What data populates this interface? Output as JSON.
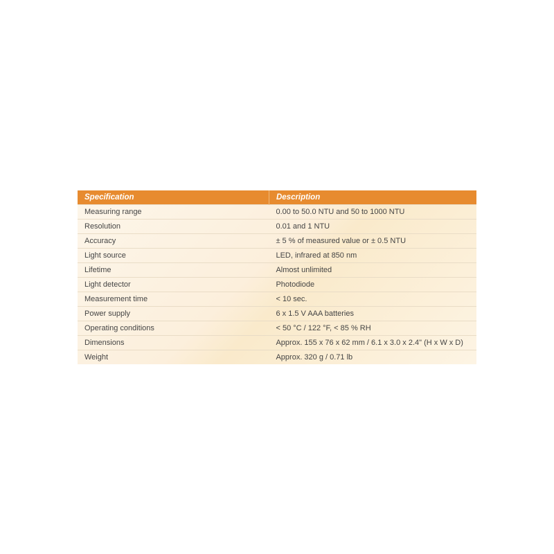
{
  "spec_table": {
    "type": "table",
    "header_bg": "#e78b2f",
    "header_text_color": "#ffffff",
    "row_border_color": "#e9dcc6",
    "body_bg_gradient": [
      "#fdf6ea",
      "#fcefdc",
      "#faeacb",
      "#fdf4e4"
    ],
    "text_color": "#444444",
    "font_size_pt": 8.5,
    "columns": [
      "Specification",
      "Description"
    ],
    "rows": [
      [
        "Measuring range",
        "0.00 to 50.0 NTU and 50 to 1000 NTU"
      ],
      [
        "Resolution",
        "0.01 and 1 NTU"
      ],
      [
        "Accuracy",
        "± 5 % of measured value or  ± 0.5 NTU"
      ],
      [
        "Light source",
        "LED, infrared at 850 nm"
      ],
      [
        "Lifetime",
        "Almost unlimited"
      ],
      [
        "Light detector",
        "Photodiode"
      ],
      [
        "Measurement time",
        "< 10 sec."
      ],
      [
        "Power supply",
        "6 x 1.5 V AAA batteries"
      ],
      [
        "Operating conditions",
        "< 50 °C / 122 °F, < 85 % RH"
      ],
      [
        "Dimensions",
        "Approx. 155 x 76 x 62 mm / 6.1 x 3.0 x 2.4\" (H x W x D)"
      ],
      [
        "Weight",
        "Approx. 320 g / 0.71 lb"
      ]
    ]
  }
}
